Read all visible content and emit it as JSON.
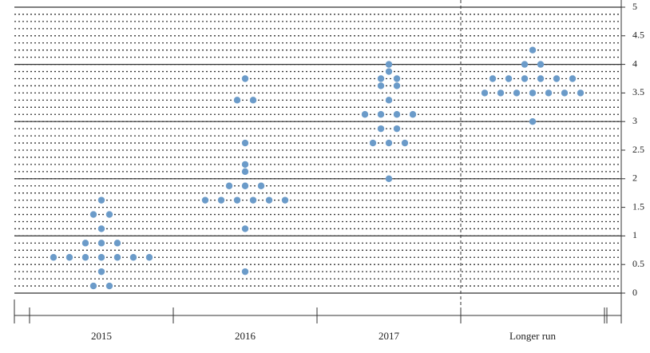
{
  "chart_data": {
    "type": "dot",
    "categories": [
      "2015",
      "2016",
      "2017",
      "Longer run"
    ],
    "values": [
      [
        0.125,
        0.125,
        0.375,
        0.625,
        0.625,
        0.625,
        0.625,
        0.625,
        0.625,
        0.625,
        0.875,
        0.875,
        0.875,
        1.125,
        1.375,
        1.375,
        1.625
      ],
      [
        0.375,
        1.125,
        1.625,
        1.625,
        1.625,
        1.625,
        1.625,
        1.625,
        1.875,
        1.875,
        1.875,
        2.125,
        2.25,
        2.625,
        3.375,
        3.375,
        3.75
      ],
      [
        2,
        2.625,
        2.625,
        2.625,
        2.875,
        2.875,
        3.125,
        3.125,
        3.125,
        3.125,
        3.375,
        3.625,
        3.625,
        3.75,
        3.75,
        3.875,
        4
      ],
      [
        3,
        3.5,
        3.5,
        3.5,
        3.5,
        3.5,
        3.5,
        3.5,
        3.75,
        3.75,
        3.75,
        3.75,
        3.75,
        3.75,
        4,
        4,
        4.25
      ]
    ],
    "color": "#6b9bc9",
    "ylim": [
      0,
      5
    ],
    "yticks": [
      0,
      0.5,
      1,
      1.5,
      2,
      2.5,
      3,
      3.5,
      4,
      4.5,
      5
    ],
    "grid": true
  }
}
